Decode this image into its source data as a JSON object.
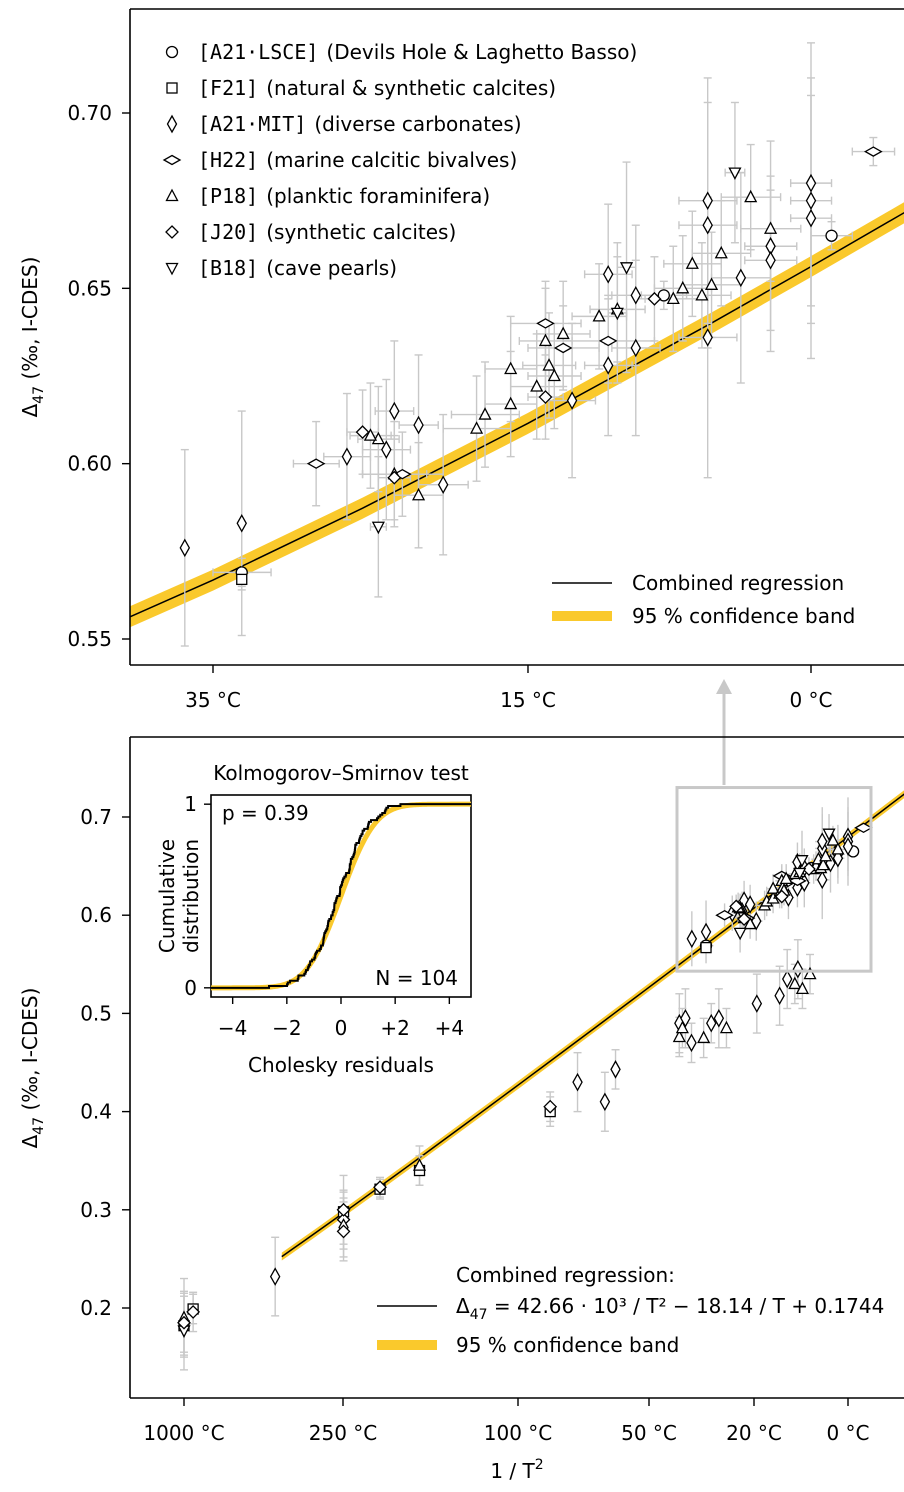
{
  "colors": {
    "band": "#fac92c",
    "line": "#000000",
    "errorbar": "#c8c8c8",
    "zoom_box": "#c8c8c8"
  },
  "chart_data": [
    {
      "id": "top",
      "type": "scatter",
      "ylabel_main": "Δ",
      "ylabel_sub": "47",
      "ylabel_rest": " (‰, I-CDES)",
      "ylim": [
        0.545,
        0.725
      ],
      "yticks": [
        0.55,
        0.6,
        0.65,
        0.7
      ],
      "yticklabels": [
        "0.55",
        "0.60",
        "0.65",
        "0.70"
      ],
      "xlim_celsius": [
        45,
        -9
      ],
      "xticks_celsius": [
        35,
        15,
        0
      ],
      "xticklabels": [
        "35 °C",
        "15 °C",
        "0 °C"
      ],
      "x_scale": "1/T^2",
      "legend_markers": [
        {
          "symbol": "circle",
          "code": "[A21·LSCE]",
          "desc": "(Devils Hole & Laghetto Basso)"
        },
        {
          "symbol": "square",
          "code": "[F21]",
          "desc": "(natural & synthetic calcites)"
        },
        {
          "symbol": "thin-diamond",
          "code": "[A21·MIT]",
          "desc": "(diverse carbonates)"
        },
        {
          "symbol": "wide-diamond",
          "code": "[H22]",
          "desc": "(marine calcitic bivalves)"
        },
        {
          "symbol": "triangle-up",
          "code": "[P18]",
          "desc": "(planktic  foraminifera)"
        },
        {
          "symbol": "diamond",
          "code": "[J20]",
          "desc": "(synthetic calcites)"
        },
        {
          "symbol": "triangle-down",
          "code": "[B18]",
          "desc": "(cave pearls)"
        }
      ],
      "legend_lines": [
        {
          "kind": "line",
          "label": "Combined regression"
        },
        {
          "kind": "band",
          "label": "95 % confidence band"
        }
      ],
      "series": [
        {
          "symbol": "circle",
          "points": [
            [
              33,
              0.569,
              2,
              0.004
            ],
            [
              7.5,
              0.648,
              1.2,
              0.004
            ],
            [
              -1,
              0.665,
              1,
              0.004
            ]
          ]
        },
        {
          "symbol": "square",
          "points": [
            [
              33,
              0.567,
              0,
              0.003
            ]
          ]
        },
        {
          "symbol": "thin-diamond",
          "points": [
            [
              37,
              0.576,
              0,
              0.028
            ],
            [
              33,
              0.583,
              0,
              0.032
            ],
            [
              26,
              0.602,
              1.5,
              0.018
            ],
            [
              23,
              0.615,
              1.2,
              0.02
            ],
            [
              23.5,
              0.604,
              1.5,
              0.02
            ],
            [
              21.5,
              0.611,
              1.2,
              0.02
            ],
            [
              20,
              0.594,
              1.5,
              0.02
            ],
            [
              12.5,
              0.618,
              1.3,
              0.022
            ],
            [
              10.5,
              0.654,
              1.3,
              0.02
            ],
            [
              10.5,
              0.628,
              1.3,
              0.02
            ],
            [
              9,
              0.633,
              1.3,
              0.025
            ],
            [
              9,
              0.648,
              1.3,
              0.02
            ],
            [
              5.2,
              0.668,
              1.5,
              0.035
            ],
            [
              5.2,
              0.675,
              1.5,
              0.035
            ],
            [
              5.2,
              0.636,
              1.5,
              0.04
            ],
            [
              3.5,
              0.653,
              1.5,
              0.03
            ],
            [
              2,
              0.662,
              1.3,
              0.03
            ],
            [
              2,
              0.658,
              1.3,
              0.02
            ],
            [
              0,
              0.68,
              1,
              0.04
            ],
            [
              0,
              0.675,
              1,
              0.03
            ],
            [
              0,
              0.67,
              1,
              0.04
            ]
          ]
        },
        {
          "symbol": "wide-diamond",
          "points": [
            [
              28,
              0.6,
              1.5,
              0.012
            ],
            [
              22.5,
              0.597,
              2.5,
              0.012
            ],
            [
              13,
              0.633,
              2,
              0.012
            ],
            [
              14,
              0.64,
              2,
              0.012
            ],
            [
              10.5,
              0.635,
              2.5,
              0.012
            ],
            [
              -3,
              0.689,
              1,
              0.004
            ]
          ]
        },
        {
          "symbol": "triangle-up",
          "points": [
            [
              24,
              0.607,
              1.3,
              0.015
            ],
            [
              24.5,
              0.608,
              1.3,
              0.015
            ],
            [
              23,
              0.597,
              2,
              0.015
            ],
            [
              21.5,
              0.591,
              1.5,
              0.015
            ],
            [
              18,
              0.61,
              2,
              0.015
            ],
            [
              17.5,
              0.614,
              2,
              0.015
            ],
            [
              16,
              0.617,
              1.5,
              0.015
            ],
            [
              16,
              0.627,
              1.5,
              0.015
            ],
            [
              14.5,
              0.622,
              1.5,
              0.015
            ],
            [
              14,
              0.635,
              1.5,
              0.015
            ],
            [
              13.8,
              0.628,
              1.5,
              0.015
            ],
            [
              13.5,
              0.625,
              1.5,
              0.015
            ],
            [
              13,
              0.637,
              1.5,
              0.015
            ],
            [
              11,
              0.642,
              1.5,
              0.015
            ],
            [
              10,
              0.644,
              1.5,
              0.015
            ],
            [
              7,
              0.647,
              1.5,
              0.015
            ],
            [
              6.5,
              0.65,
              1.5,
              0.015
            ],
            [
              6,
              0.657,
              1.5,
              0.015
            ],
            [
              5.5,
              0.648,
              1.5,
              0.015
            ],
            [
              5,
              0.651,
              1.5,
              0.015
            ],
            [
              4.5,
              0.66,
              1.5,
              0.015
            ],
            [
              3,
              0.676,
              1.5,
              0.015
            ],
            [
              2,
              0.667,
              1.5,
              0.015
            ]
          ]
        },
        {
          "symbol": "diamond",
          "points": [
            [
              25,
              0.609,
              1,
              0.012
            ],
            [
              23,
              0.596,
              1,
              0.012
            ],
            [
              14,
              0.619,
              1,
              0.012
            ],
            [
              8,
              0.647,
              1,
              0.012
            ]
          ]
        },
        {
          "symbol": "triangle-down",
          "points": [
            [
              24,
              0.582,
              0.5,
              0.02
            ],
            [
              10,
              0.643,
              0.5,
              0.02
            ],
            [
              9.5,
              0.656,
              0.5,
              0.03
            ],
            [
              3.8,
              0.683,
              0.5,
              0.02
            ]
          ]
        }
      ],
      "regression_celsius": [
        [
          45,
          0.5497
        ],
        [
          35,
          0.5668
        ],
        [
          25,
          0.5873
        ],
        [
          15,
          0.6115
        ],
        [
          5,
          0.6401
        ],
        [
          0,
          0.6562
        ],
        [
          -9,
          0.6881
        ]
      ],
      "band_halfwidth": 0.003
    },
    {
      "id": "bottom",
      "type": "scatter",
      "ylabel_main": "Δ",
      "ylabel_sub": "47",
      "ylabel_rest": " (‰, I-CDES)",
      "xlabel_main": "1 / T",
      "xlabel_sup": "2",
      "ylim": [
        0.14,
        0.76
      ],
      "yticks": [
        0.2,
        0.3,
        0.4,
        0.5,
        0.6,
        0.7
      ],
      "yticklabels": [
        "0.2",
        "0.3",
        "0.4",
        "0.5",
        "0.6",
        "0.7"
      ],
      "xticks_celsius": [
        1000,
        250,
        100,
        50,
        20,
        0
      ],
      "xticklabels": [
        "1000 °C",
        "250 °C",
        "100 °C",
        "50 °C",
        "20 °C",
        "0 °C"
      ],
      "x_scale": "1/T^2",
      "regression_equation": "Δ47 = 42.66 · 10³ / T² − 18.14 / T + 0.1744",
      "legend_title": "Combined regression:",
      "legend_eq_main": "Δ",
      "legend_eq_sub": "47",
      "legend_eq_rest": " = 42.66 · 10³ / T² − 18.14 / T + 0.1744",
      "legend_band": "95 % confidence band",
      "zoom_box_celsius": [
        40,
        -3
      ],
      "zoom_box_y": [
        0.543,
        0.73
      ],
      "points_inv_t2": [
        [
          0.58,
          0.182,
          "square",
          0.03
        ],
        [
          0.58,
          0.177,
          "triangle-down",
          0.04
        ],
        [
          0.58,
          0.19,
          "triangle-up",
          0.04
        ],
        [
          0.58,
          0.185,
          "diamond",
          0.03
        ],
        [
          0.64,
          0.199,
          "square",
          0.015
        ],
        [
          0.64,
          0.196,
          "diamond",
          0.02
        ],
        [
          1.18,
          0.232,
          "thin-diamond",
          0.04
        ],
        [
          1.63,
          0.298,
          "square",
          0.02
        ],
        [
          1.63,
          0.29,
          "diamond",
          0.03
        ],
        [
          1.63,
          0.3,
          "diamond",
          0.035
        ],
        [
          1.63,
          0.282,
          "thin-diamond",
          0.03
        ],
        [
          1.63,
          0.278,
          "diamond",
          0.03
        ],
        [
          1.87,
          0.321,
          "square",
          0.01
        ],
        [
          1.87,
          0.323,
          "diamond",
          0.01
        ],
        [
          2.13,
          0.34,
          "square",
          0.015
        ],
        [
          2.13,
          0.345,
          "triangle-up",
          0.02
        ],
        [
          2.99,
          0.4,
          "square",
          0.015
        ],
        [
          2.99,
          0.405,
          "diamond",
          0.015
        ],
        [
          3.17,
          0.43,
          "thin-diamond",
          0.03
        ],
        [
          3.35,
          0.41,
          "thin-diamond",
          0.03
        ],
        [
          3.42,
          0.443,
          "thin-diamond",
          0.02
        ],
        [
          3.84,
          0.476,
          "triangle-up",
          0.02
        ],
        [
          3.84,
          0.49,
          "thin-diamond",
          0.03
        ],
        [
          3.86,
          0.485,
          "triangle-up",
          0.02
        ],
        [
          3.88,
          0.495,
          "thin-diamond",
          0.03
        ],
        [
          3.92,
          0.47,
          "thin-diamond",
          0.02
        ],
        [
          4.0,
          0.475,
          "triangle-up",
          0.02
        ],
        [
          4.05,
          0.49,
          "thin-diamond",
          0.02
        ],
        [
          4.1,
          0.495,
          "thin-diamond",
          0.03
        ],
        [
          4.15,
          0.485,
          "triangle-up",
          0.02
        ],
        [
          4.35,
          0.51,
          "thin-diamond",
          0.03
        ],
        [
          4.5,
          0.518,
          "thin-diamond",
          0.03
        ],
        [
          4.55,
          0.535,
          "thin-diamond",
          0.03
        ],
        [
          4.6,
          0.53,
          "triangle-up",
          0.02
        ],
        [
          4.62,
          0.545,
          "thin-diamond",
          0.03
        ],
        [
          4.65,
          0.525,
          "triangle-up",
          0.02
        ],
        [
          4.7,
          0.54,
          "triangle-up",
          0.02
        ]
      ],
      "inset": {
        "title": "Kolmogorov–Smirnov test",
        "p_label": "p = 0.39",
        "n_label": "N = 104",
        "xlabel": "Cholesky residuals",
        "ylabel_line1": "Cumulative",
        "ylabel_line2": "distribution",
        "xticks": [
          -4,
          -2,
          0,
          2,
          4
        ],
        "xticklabels": [
          "−4",
          "−2",
          "0",
          "+2",
          "+4"
        ],
        "yticks": [
          0,
          1
        ],
        "yticklabels": [
          "0",
          "1"
        ],
        "xlim": [
          -4.8,
          4.8
        ],
        "ylim": [
          -0.05,
          1.05
        ]
      }
    }
  ]
}
